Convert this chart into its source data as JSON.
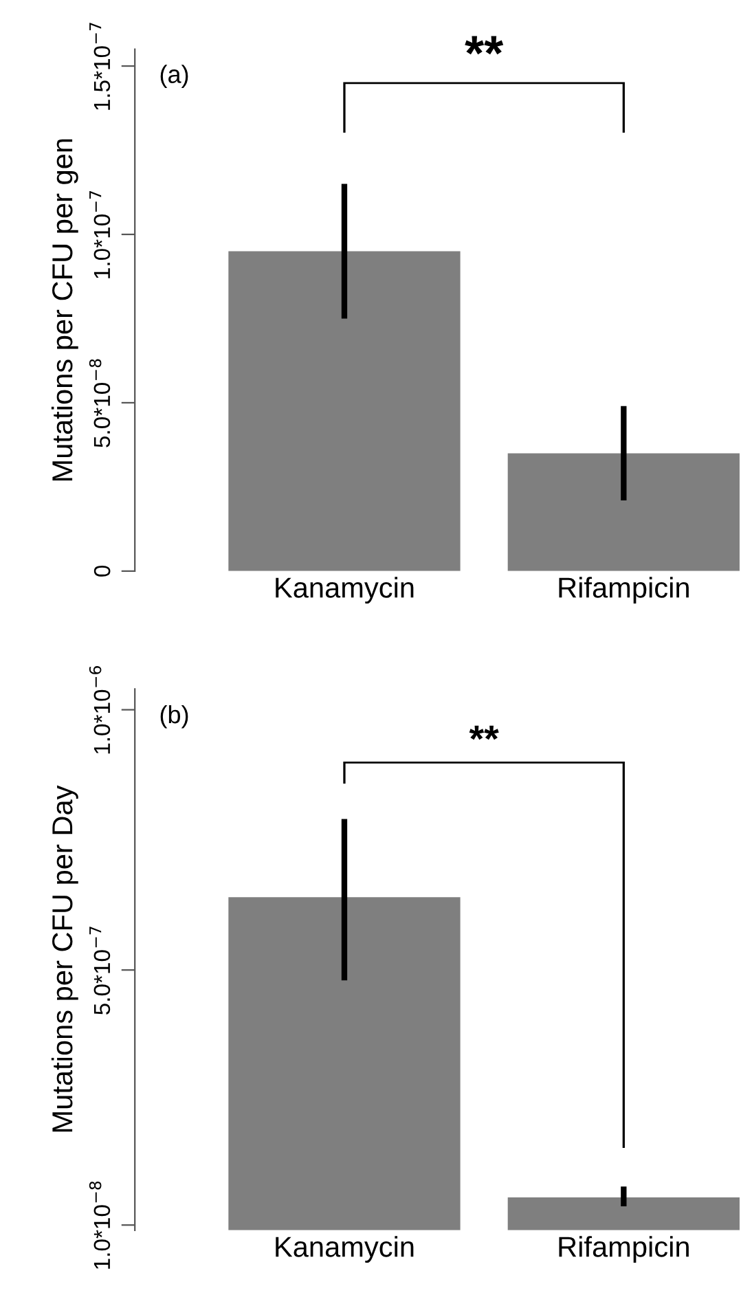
{
  "chart_data": [
    {
      "type": "bar",
      "ylabel": "Mutations per CFU per gen",
      "categories": [
        "Kanamycin",
        "Rifampicin"
      ],
      "values": [
        9.5e-08,
        3.5e-08
      ],
      "errors": [
        [
          7.5e-08,
          1.15e-07
        ],
        [
          2.1e-08,
          4.9e-08
        ]
      ],
      "color": "#7f7f7f",
      "ylim": [
        0,
        1.55e-07
      ],
      "yticks": [
        0,
        {
          "value": 5e-08,
          "label": "5.0*10$^{−8}$"
        },
        {
          "value": 1e-07,
          "label": "1.0*10$^{−7}$"
        },
        {
          "value": 1.5e-07,
          "label": "1.5*10$^{−7}$"
        }
      ],
      "annotations": [
        "(a)",
        "**"
      ]
    },
    {
      "type": "bar",
      "ylabel": "Mutations per CFU per Day",
      "categories": [
        "Kanamycin",
        "Rifampicin"
      ],
      "values": [
        6.4e-07,
        6.3e-08
      ],
      "errors": [
        [
          4.8e-07,
          7.9e-07
        ],
        [
          4.6e-08,
          8.4e-08
        ]
      ],
      "color": "#7f7f7f",
      "ylim": [
        0,
        1.04e-06
      ],
      "yticks": [
        {
          "value": 1e-08,
          "label": "1.0*10$^{−8}$"
        },
        {
          "value": 5e-07,
          "label": "5.0*10$^{−7}$"
        },
        {
          "value": 1e-06,
          "label": "1.0*10$^{−6}$"
        }
      ],
      "annotations": [
        "(b)",
        "**"
      ]
    }
  ]
}
